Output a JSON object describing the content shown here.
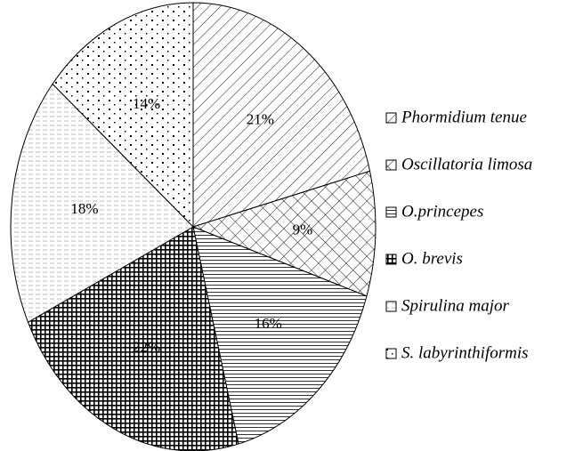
{
  "chart_data": {
    "type": "pie",
    "categories": [
      "Phormidium  tenue",
      "Oscillatoria limosa",
      "O.princepes",
      "O. brevis",
      "Spirulina major",
      "S. labyrinthiformis"
    ],
    "values": [
      21,
      9,
      16,
      22,
      18,
      14
    ],
    "value_labels": [
      "21%",
      "9%",
      "16%",
      "22%",
      "18%",
      "14%"
    ],
    "patterns": [
      "diagonal",
      "cross",
      "horizontal",
      "grid",
      "dashed",
      "dots"
    ],
    "legend": "right"
  }
}
